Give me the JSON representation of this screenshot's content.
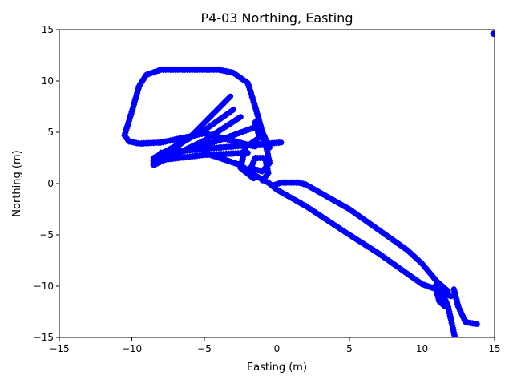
{
  "chart_data": {
    "type": "line",
    "title": "P4-03 Northing, Easting",
    "xlabel": "Easting (m)",
    "ylabel": "Northing (m)",
    "xlim": [
      -15,
      15
    ],
    "ylim": [
      -15,
      15
    ],
    "xticks": [
      -15,
      -10,
      -5,
      0,
      5,
      10,
      15
    ],
    "yticks": [
      -15,
      -10,
      -5,
      0,
      5,
      10,
      15
    ],
    "grid": false,
    "marker": "+",
    "color": "#0000ff",
    "segments": [
      [
        [
          -0.5,
          3.5
        ],
        [
          -1,
          5
        ],
        [
          -1.5,
          7.5
        ],
        [
          -2,
          9.8
        ],
        [
          -3,
          10.8
        ],
        [
          -4,
          11.1
        ],
        [
          -8,
          11.1
        ],
        [
          -9,
          10.6
        ],
        [
          -9.5,
          9.5
        ],
        [
          -10,
          7
        ],
        [
          -10.5,
          4.7
        ],
        [
          -10.2,
          4.1
        ],
        [
          -9.5,
          3.9
        ],
        [
          -8,
          4
        ],
        [
          -5,
          4.9
        ],
        [
          -1.5,
          3.6
        ]
      ],
      [
        [
          -8.5,
          2.0
        ],
        [
          -6,
          4.5
        ],
        [
          -3.2,
          8.5
        ]
      ],
      [
        [
          -8.5,
          2.5
        ],
        [
          -5,
          5.2
        ],
        [
          -3,
          7.2
        ]
      ],
      [
        [
          -8.5,
          1.8
        ],
        [
          -5,
          4.2
        ],
        [
          -2.5,
          6.5
        ]
      ],
      [
        [
          -8,
          2.5
        ],
        [
          -4,
          4.2
        ],
        [
          -1.5,
          5.5
        ]
      ],
      [
        [
          -8,
          3.0
        ],
        [
          -4,
          3.5
        ],
        [
          0.3,
          4.0
        ]
      ],
      [
        [
          -8.5,
          2.2
        ],
        [
          -5,
          2.8
        ],
        [
          -2,
          3.0
        ]
      ],
      [
        [
          -5,
          3.0
        ],
        [
          -2.5,
          1.8
        ],
        [
          -1.5,
          0.8
        ],
        [
          -0.5,
          0
        ],
        [
          0,
          -0.6
        ]
      ],
      [
        [
          -1.5,
          5.5
        ],
        [
          -0.8,
          4
        ],
        [
          -0.5,
          2
        ],
        [
          -1,
          1.2
        ],
        [
          -1.8,
          1.5
        ],
        [
          -1.5,
          2.5
        ],
        [
          -0.8,
          2.5
        ],
        [
          -0.6,
          1
        ],
        [
          -1,
          0.3
        ]
      ],
      [
        [
          -1.5,
          6
        ],
        [
          -1.2,
          4.5
        ],
        [
          -2.2,
          3.5
        ],
        [
          -2.5,
          1.5
        ],
        [
          -1.6,
          0.5
        ]
      ],
      [
        [
          -0.6,
          0.1
        ],
        [
          0,
          -0.6
        ],
        [
          2,
          -2.2
        ],
        [
          5,
          -5.0
        ],
        [
          7,
          -6.8
        ],
        [
          9,
          -8.8
        ],
        [
          10,
          -9.8
        ],
        [
          11,
          -10.3
        ],
        [
          12,
          -11
        ]
      ],
      [
        [
          -0.3,
          -0.2
        ],
        [
          0.3,
          0.1
        ],
        [
          1.5,
          0.1
        ],
        [
          2,
          -0.1
        ],
        [
          5,
          -2.5
        ],
        [
          6,
          -3.5
        ],
        [
          7.5,
          -5
        ],
        [
          9,
          -6.5
        ],
        [
          10,
          -7.8
        ],
        [
          11,
          -9.5
        ],
        [
          11.8,
          -10.5
        ]
      ],
      [
        [
          11.3,
          -10.3
        ],
        [
          11.8,
          -12
        ],
        [
          12.3,
          -15.2
        ]
      ],
      [
        [
          12.2,
          -10.3
        ],
        [
          12.5,
          -12
        ],
        [
          13,
          -13.5
        ],
        [
          13.8,
          -13.7
        ]
      ],
      [
        [
          10.9,
          -10
        ],
        [
          11.2,
          -11.5
        ],
        [
          11.6,
          -12
        ]
      ],
      [
        [
          14.9,
          14.6
        ],
        [
          15,
          14.6
        ]
      ]
    ]
  }
}
